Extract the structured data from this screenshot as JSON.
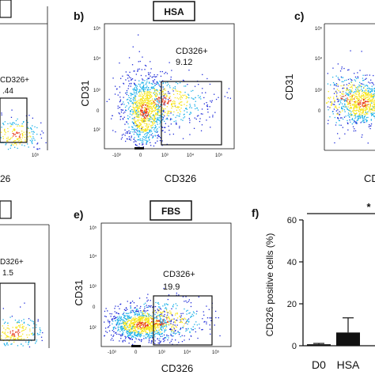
{
  "panels": {
    "a": {
      "gate_label": "CD326+",
      "gate_value": ".44",
      "xlabel": "26"
    },
    "b": {
      "letter": "b)",
      "title": "HSA",
      "ylabel": "CD31",
      "xlabel": "CD326",
      "gate_label": "CD326+",
      "gate_value": "9.12"
    },
    "c": {
      "letter": "c)",
      "ylabel": "CD31",
      "xlabel": "CD"
    },
    "d": {
      "gate_label": "D326+",
      "gate_value": "1.5"
    },
    "e": {
      "letter": "e)",
      "title": "FBS",
      "ylabel": "CD31",
      "xlabel": "CD326",
      "gate_label": "CD326+",
      "gate_value": "19.9"
    },
    "f": {
      "letter": "f)",
      "significance": "*"
    }
  },
  "chart_data": {
    "type": "bar",
    "categories": [
      "D0",
      "HSA"
    ],
    "values": [
      0.7,
      6.3
    ],
    "errors": [
      0.4,
      7.0
    ],
    "ylabel": "CD326 positive cells (%)",
    "ylim": [
      0,
      60
    ],
    "yticks": [
      0,
      20,
      40,
      60
    ],
    "yticklabels": [
      "0",
      "20",
      "40",
      "60"
    ]
  },
  "ticks": {
    "y": [
      "10⁵",
      "10⁴",
      "10³",
      "0",
      "10²"
    ],
    "x": [
      "-10³",
      "0",
      "10³",
      "10⁴",
      "10⁵"
    ],
    "y_short": [
      "10⁵",
      "10⁴",
      "10³",
      "0"
    ]
  },
  "colors": {
    "density_low": "#1f2bd9",
    "density_mid": "#19b0e8",
    "density_high": "#f7e51b",
    "density_peak": "#e83a1a"
  }
}
